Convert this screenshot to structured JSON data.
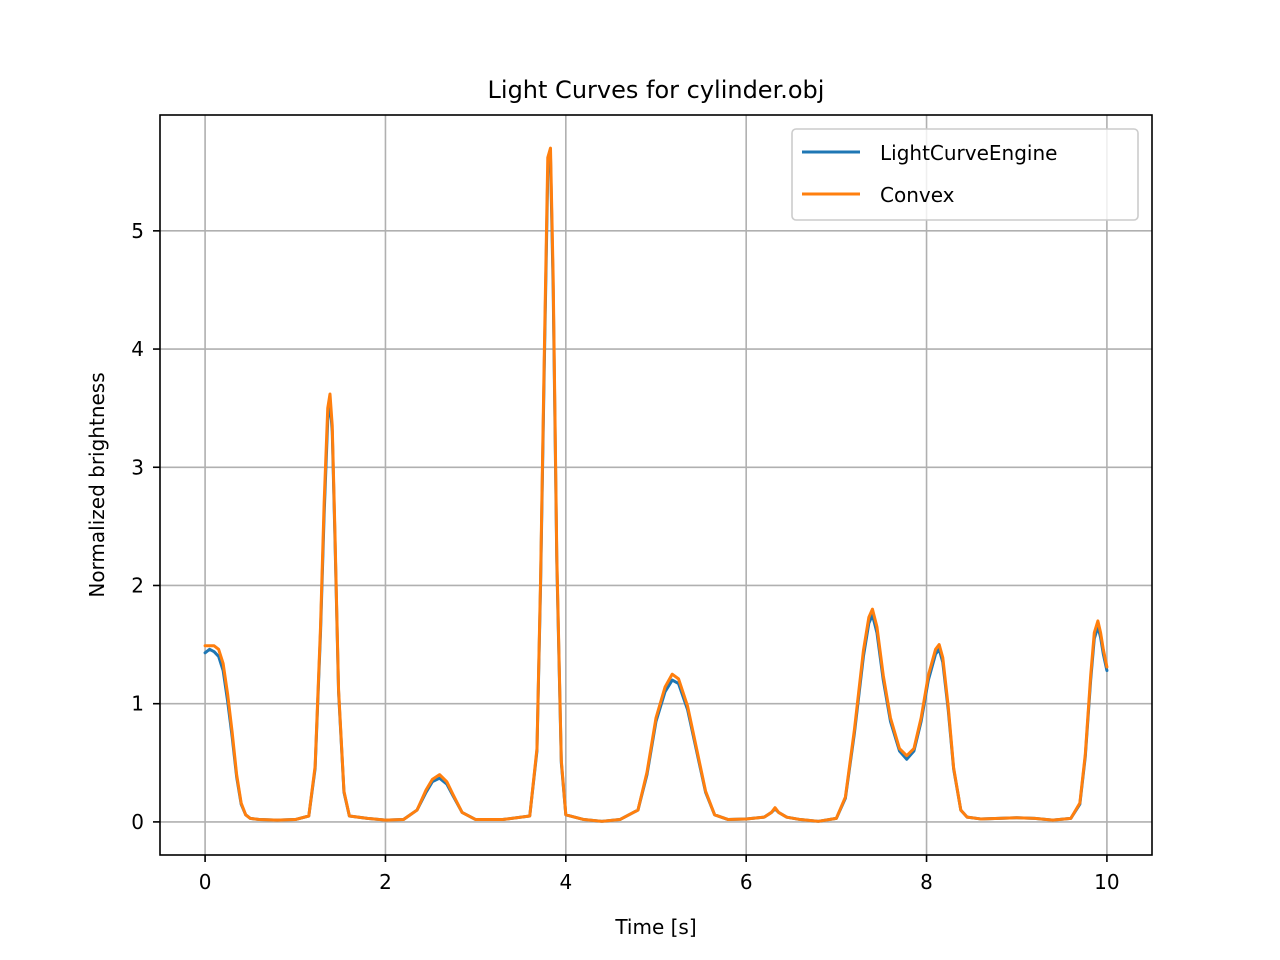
{
  "chart_data": {
    "type": "line",
    "title": "Light Curves for cylinder.obj",
    "xlabel": "Time [s]",
    "ylabel": "Normalized brightness",
    "xlim": [
      -0.5,
      10.5
    ],
    "ylim": [
      -0.28,
      5.98
    ],
    "xticks": [
      0,
      2,
      4,
      6,
      8,
      10
    ],
    "yticks": [
      0,
      1,
      2,
      3,
      4,
      5
    ],
    "grid": true,
    "legend_position": "top-right",
    "series": [
      {
        "name": "LightCurveEngine",
        "color": "#1f77b4",
        "x": [
          0,
          0.05,
          0.1,
          0.15,
          0.2,
          0.25,
          0.3,
          0.35,
          0.4,
          0.45,
          0.5,
          0.6,
          0.8,
          1.0,
          1.15,
          1.22,
          1.28,
          1.32,
          1.36,
          1.385,
          1.41,
          1.44,
          1.48,
          1.54,
          1.6,
          1.8,
          2.0,
          2.2,
          2.35,
          2.45,
          2.52,
          2.6,
          2.68,
          2.75,
          2.85,
          3.0,
          3.3,
          3.6,
          3.68,
          3.72,
          3.76,
          3.8,
          3.83,
          3.86,
          3.9,
          3.95,
          4.0,
          4.2,
          4.4,
          4.6,
          4.8,
          4.9,
          5.0,
          5.1,
          5.18,
          5.25,
          5.35,
          5.45,
          5.55,
          5.65,
          5.8,
          6.0,
          6.2,
          6.28,
          6.32,
          6.36,
          6.45,
          6.6,
          6.8,
          7.0,
          7.1,
          7.2,
          7.3,
          7.36,
          7.4,
          7.45,
          7.52,
          7.6,
          7.7,
          7.78,
          7.86,
          7.94,
          8.02,
          8.1,
          8.14,
          8.18,
          8.24,
          8.3,
          8.38,
          8.45,
          8.6,
          8.8,
          9.0,
          9.2,
          9.4,
          9.6,
          9.7,
          9.76,
          9.82,
          9.86,
          9.9,
          9.93,
          9.96,
          10.0
        ],
        "y": [
          1.43,
          1.46,
          1.44,
          1.4,
          1.28,
          1.02,
          0.72,
          0.38,
          0.15,
          0.06,
          0.03,
          0.02,
          0.015,
          0.02,
          0.05,
          0.45,
          1.6,
          2.6,
          3.4,
          3.56,
          3.3,
          2.4,
          1.1,
          0.25,
          0.05,
          0.03,
          0.015,
          0.02,
          0.1,
          0.25,
          0.34,
          0.37,
          0.32,
          0.22,
          0.08,
          0.02,
          0.02,
          0.05,
          0.6,
          2.0,
          3.8,
          5.5,
          5.62,
          4.5,
          2.2,
          0.5,
          0.06,
          0.02,
          0.005,
          0.02,
          0.1,
          0.4,
          0.85,
          1.1,
          1.2,
          1.17,
          0.95,
          0.6,
          0.25,
          0.06,
          0.02,
          0.025,
          0.04,
          0.08,
          0.11,
          0.08,
          0.04,
          0.02,
          0.005,
          0.03,
          0.2,
          0.75,
          1.4,
          1.68,
          1.75,
          1.6,
          1.2,
          0.85,
          0.6,
          0.53,
          0.6,
          0.85,
          1.2,
          1.42,
          1.46,
          1.35,
          0.95,
          0.45,
          0.1,
          0.04,
          0.025,
          0.03,
          0.035,
          0.03,
          0.015,
          0.03,
          0.15,
          0.55,
          1.2,
          1.55,
          1.65,
          1.56,
          1.42,
          1.28
        ]
      },
      {
        "name": "Convex",
        "color": "#ff7f0e",
        "x": [
          0,
          0.05,
          0.1,
          0.15,
          0.2,
          0.25,
          0.3,
          0.35,
          0.4,
          0.45,
          0.5,
          0.6,
          0.8,
          1.0,
          1.15,
          1.22,
          1.28,
          1.32,
          1.36,
          1.385,
          1.41,
          1.44,
          1.48,
          1.54,
          1.6,
          1.8,
          2.0,
          2.2,
          2.35,
          2.45,
          2.52,
          2.6,
          2.68,
          2.75,
          2.85,
          3.0,
          3.3,
          3.6,
          3.68,
          3.72,
          3.76,
          3.8,
          3.83,
          3.86,
          3.9,
          3.95,
          4.0,
          4.2,
          4.4,
          4.6,
          4.8,
          4.9,
          5.0,
          5.1,
          5.18,
          5.25,
          5.35,
          5.45,
          5.55,
          5.65,
          5.8,
          6.0,
          6.2,
          6.28,
          6.32,
          6.36,
          6.45,
          6.6,
          6.8,
          7.0,
          7.1,
          7.2,
          7.3,
          7.36,
          7.4,
          7.45,
          7.52,
          7.6,
          7.7,
          7.78,
          7.86,
          7.94,
          8.02,
          8.1,
          8.14,
          8.18,
          8.24,
          8.3,
          8.38,
          8.45,
          8.6,
          8.8,
          9.0,
          9.2,
          9.4,
          9.6,
          9.7,
          9.76,
          9.82,
          9.86,
          9.9,
          9.93,
          9.96,
          10.0
        ],
        "y": [
          1.49,
          1.49,
          1.49,
          1.46,
          1.34,
          1.08,
          0.76,
          0.4,
          0.16,
          0.06,
          0.03,
          0.02,
          0.015,
          0.02,
          0.05,
          0.47,
          1.65,
          2.7,
          3.5,
          3.62,
          3.35,
          2.45,
          1.12,
          0.26,
          0.05,
          0.03,
          0.015,
          0.02,
          0.1,
          0.27,
          0.36,
          0.4,
          0.34,
          0.23,
          0.08,
          0.02,
          0.02,
          0.05,
          0.62,
          2.05,
          3.9,
          5.62,
          5.7,
          4.6,
          2.25,
          0.52,
          0.06,
          0.02,
          0.005,
          0.02,
          0.1,
          0.42,
          0.88,
          1.14,
          1.25,
          1.21,
          0.98,
          0.62,
          0.26,
          0.06,
          0.02,
          0.025,
          0.04,
          0.08,
          0.12,
          0.08,
          0.04,
          0.02,
          0.005,
          0.03,
          0.21,
          0.78,
          1.45,
          1.73,
          1.8,
          1.65,
          1.24,
          0.88,
          0.62,
          0.56,
          0.62,
          0.88,
          1.24,
          1.46,
          1.5,
          1.39,
          0.98,
          0.46,
          0.1,
          0.04,
          0.025,
          0.03,
          0.035,
          0.03,
          0.015,
          0.03,
          0.16,
          0.57,
          1.24,
          1.6,
          1.7,
          1.6,
          1.46,
          1.31
        ]
      }
    ]
  }
}
